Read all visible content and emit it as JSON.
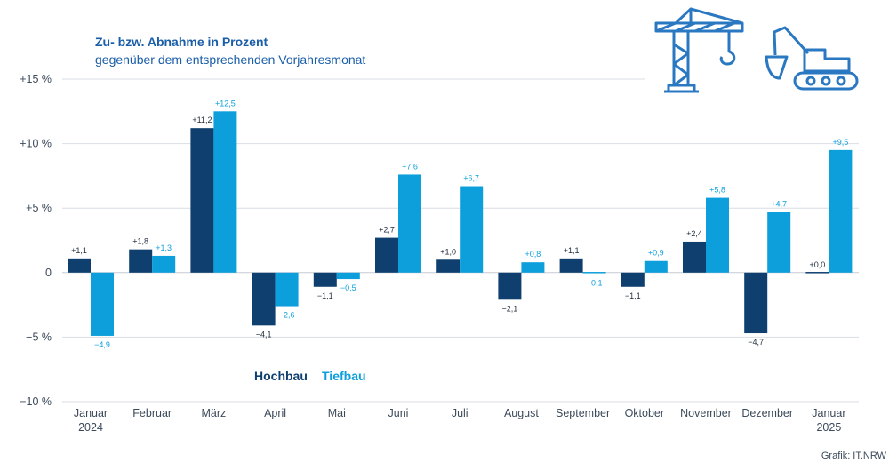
{
  "colors": {
    "hochbau": "#0e3f6e",
    "tiefbau": "#0d9fdc",
    "title": "#1a5ea8",
    "text": "#3c4a5a",
    "grid": "#d9dee3",
    "icon": "#2a78c2"
  },
  "icons": [
    "construction-crane-icon",
    "excavator-icon"
  ],
  "source": "Grafik: IT.NRW",
  "chart_data": {
    "type": "bar",
    "title": "Zu- bzw. Abnahme in Prozent",
    "subtitle": "gegenüber dem entsprechenden Vorjahresmonat",
    "ylim": [
      -10,
      15
    ],
    "yticks": [
      {
        "value": 15,
        "label": "+15 %"
      },
      {
        "value": 10,
        "label": "+10 %"
      },
      {
        "value": 5,
        "label": "+5 %"
      },
      {
        "value": 0,
        "label": "0"
      },
      {
        "value": -5,
        "label": "−5 %"
      },
      {
        "value": -10,
        "label": "−10 %"
      }
    ],
    "grid": true,
    "legend_position": "bottom-left",
    "categories": [
      [
        "Januar",
        "2024"
      ],
      [
        "Februar"
      ],
      [
        "März"
      ],
      [
        "April"
      ],
      [
        "Mai"
      ],
      [
        "Juni"
      ],
      [
        "Juli"
      ],
      [
        "August"
      ],
      [
        "September"
      ],
      [
        "Oktober"
      ],
      [
        "November"
      ],
      [
        "Dezember"
      ],
      [
        "Januar",
        "2025"
      ]
    ],
    "series": [
      {
        "name": "Hochbau",
        "values": [
          1.1,
          1.8,
          11.2,
          -4.1,
          -1.1,
          2.7,
          1.0,
          -2.1,
          1.1,
          -1.1,
          2.4,
          -4.7,
          0.0
        ],
        "labels": [
          "+1,1",
          "+1,8",
          "+11,2",
          "−4,1",
          "−1,1",
          "+2,7",
          "+1,0",
          "−2,1",
          "+1,1",
          "−1,1",
          "+2,4",
          "−4,7",
          "+0,0"
        ]
      },
      {
        "name": "Tiefbau",
        "values": [
          -4.9,
          1.3,
          12.5,
          -2.6,
          -0.5,
          7.6,
          6.7,
          0.8,
          -0.1,
          0.9,
          5.8,
          4.7,
          9.5
        ],
        "labels": [
          "−4,9",
          "+1,3",
          "+12,5",
          "−2,6",
          "−0,5",
          "+7,6",
          "+6,7",
          "+0,8",
          "−0,1",
          "+0,9",
          "+5,8",
          "+4,7",
          "+9,5"
        ]
      }
    ]
  }
}
